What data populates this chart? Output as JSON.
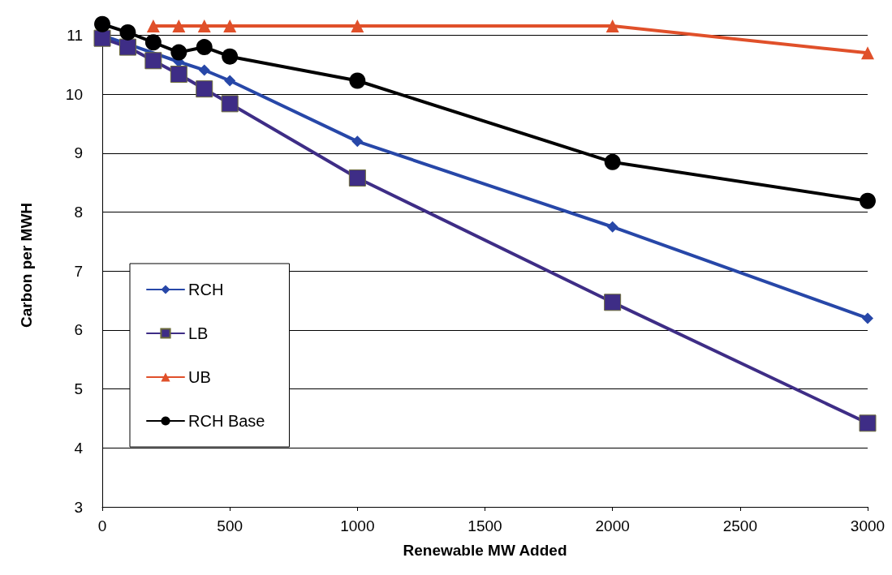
{
  "chart_data": {
    "type": "line",
    "xlabel": "Renewable MW Added",
    "ylabel": "Carbon per MWH",
    "x": [
      0,
      100,
      200,
      300,
      400,
      500,
      1000,
      2000,
      3000
    ],
    "series": [
      {
        "name": "RCH",
        "color": "#2747a8",
        "marker": "diamond",
        "values": [
          11.0,
          10.85,
          null,
          10.55,
          10.41,
          10.23,
          9.2,
          7.75,
          6.2
        ]
      },
      {
        "name": "LB",
        "color": "#3e2d86",
        "marker": "square",
        "values": [
          10.95,
          10.8,
          10.57,
          10.34,
          10.09,
          9.84,
          8.58,
          6.47,
          4.42
        ]
      },
      {
        "name": "UB",
        "color": "#e0502a",
        "marker": "triangle",
        "values": [
          null,
          null,
          11.16,
          11.16,
          11.16,
          11.16,
          11.16,
          11.16,
          10.7
        ]
      },
      {
        "name": "RCH Base",
        "color": "#000000",
        "marker": "circle",
        "values": [
          11.19,
          11.05,
          10.88,
          10.71,
          10.8,
          10.64,
          10.23,
          8.85,
          8.19
        ]
      }
    ],
    "xlim": [
      0,
      3000
    ],
    "xticks": [
      0,
      500,
      1000,
      1500,
      2000,
      2500,
      3000
    ],
    "ylim": [
      3,
      11.2
    ],
    "yticks": [
      3,
      4,
      5,
      6,
      7,
      8,
      9,
      10,
      11
    ],
    "grid": "y",
    "legend": "left",
    "line_style": "solid"
  }
}
